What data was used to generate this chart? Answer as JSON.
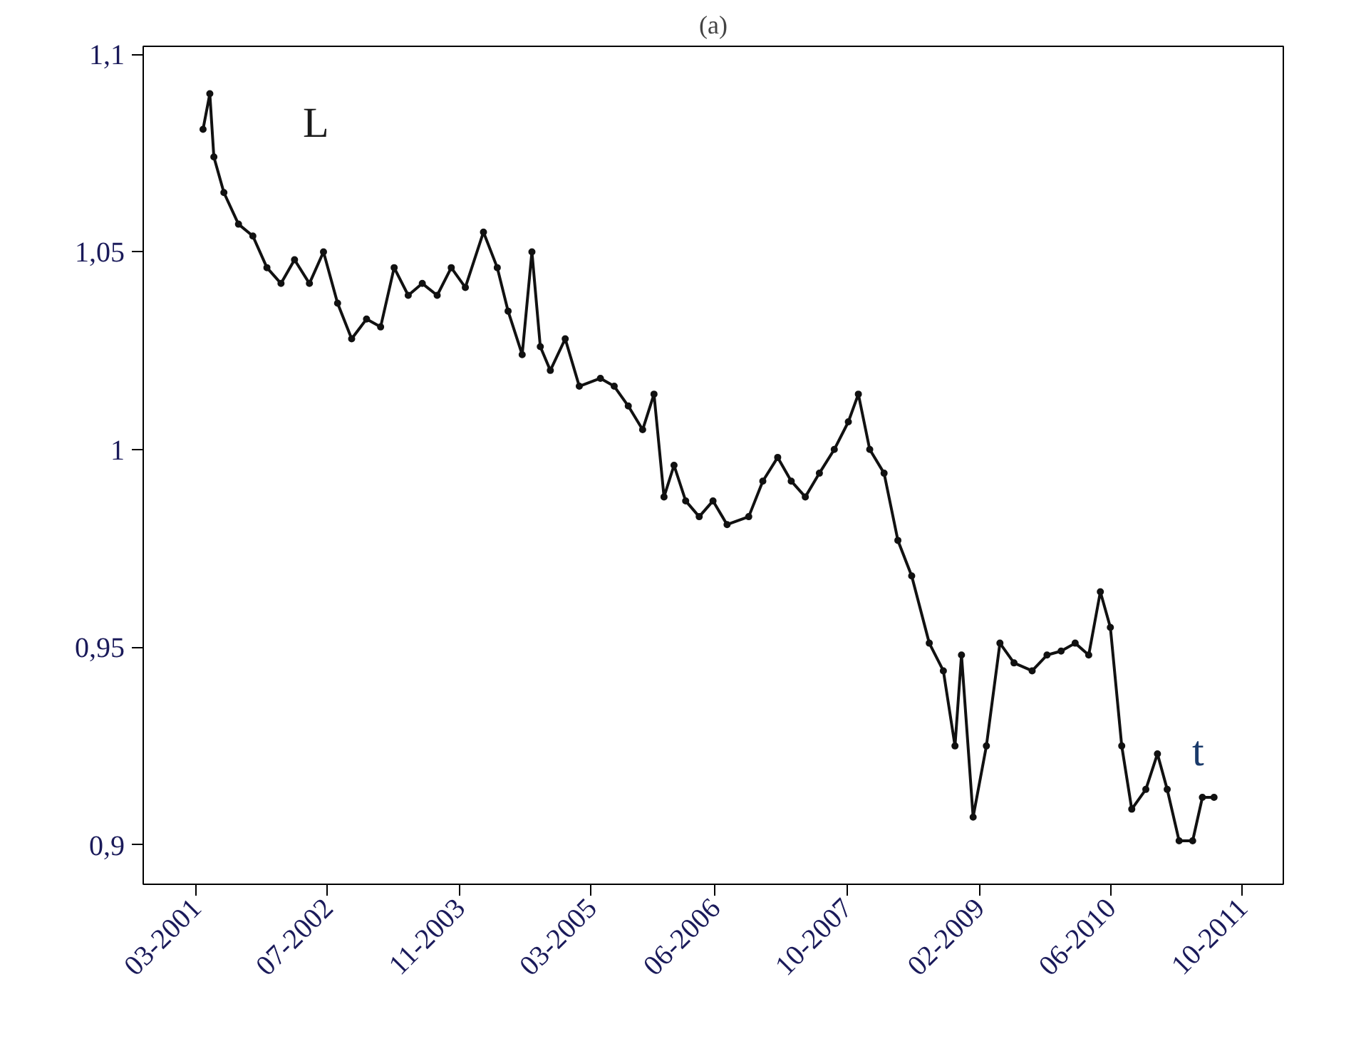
{
  "chart_data": {
    "type": "line",
    "title": "(a)",
    "marker": "circle",
    "line_style": "solid",
    "grid": false,
    "x": [
      "2001-03-28",
      "2001-04-22",
      "2001-05-07",
      "2001-06-13",
      "2001-08-06",
      "2001-09-28",
      "2001-11-19",
      "2002-01-10",
      "2002-03-01",
      "2002-04-25",
      "2002-06-16",
      "2002-08-07",
      "2002-09-28",
      "2002-11-22",
      "2003-01-13",
      "2003-03-04",
      "2003-04-25",
      "2003-06-16",
      "2003-08-10",
      "2003-10-01",
      "2003-11-22",
      "2004-01-28",
      "2004-03-19",
      "2004-04-28",
      "2004-06-19",
      "2004-07-25",
      "2004-08-25",
      "2004-10-01",
      "2004-11-25",
      "2005-01-16",
      "2005-04-04",
      "2005-05-25",
      "2005-07-16",
      "2005-09-07",
      "2005-10-19",
      "2005-11-25",
      "2006-01-01",
      "2006-02-13",
      "2006-04-04",
      "2006-05-25",
      "2006-07-16",
      "2006-10-04",
      "2006-11-25",
      "2007-01-19",
      "2007-03-10",
      "2007-05-01",
      "2007-06-22",
      "2007-08-16",
      "2007-10-07",
      "2007-11-13",
      "2007-12-25",
      "2008-02-16",
      "2008-04-07",
      "2008-05-28",
      "2008-08-01",
      "2008-09-22",
      "2008-11-04",
      "2008-11-28",
      "2009-01-10",
      "2009-02-28",
      "2009-04-19",
      "2009-06-10",
      "2009-08-16",
      "2009-10-10",
      "2009-12-01",
      "2010-01-22",
      "2010-03-13",
      "2010-04-25",
      "2010-06-01",
      "2010-07-13",
      "2010-08-19",
      "2010-10-10",
      "2010-11-22",
      "2010-12-28",
      "2011-02-10",
      "2011-04-01",
      "2011-05-07",
      "2011-06-19"
    ],
    "series": [
      {
        "color": "#111111",
        "values": [
          1.081,
          1.09,
          1.074,
          1.065,
          1.057,
          1.054,
          1.046,
          1.042,
          1.048,
          1.042,
          1.05,
          1.037,
          1.028,
          1.033,
          1.031,
          1.046,
          1.039,
          1.042,
          1.039,
          1.046,
          1.041,
          1.055,
          1.046,
          1.035,
          1.024,
          1.05,
          1.026,
          1.02,
          1.028,
          1.016,
          1.018,
          1.016,
          1.011,
          1.005,
          1.014,
          0.988,
          0.996,
          0.987,
          0.983,
          0.987,
          0.981,
          0.983,
          0.992,
          0.998,
          0.992,
          0.988,
          0.994,
          1.0,
          1.007,
          1.014,
          1.0,
          0.994,
          0.977,
          0.968,
          0.951,
          0.944,
          0.925,
          0.948,
          0.907,
          0.925,
          0.951,
          0.946,
          0.944,
          0.948,
          0.949,
          0.951,
          0.948,
          0.964,
          0.955,
          0.925,
          0.909,
          0.914,
          0.923,
          0.914,
          0.901,
          0.901,
          0.912,
          0.912
        ]
      }
    ],
    "xlim": [
      "2000-08-19",
      "2012-03-01"
    ],
    "xticks": [
      {
        "value": "2001-03",
        "label": "03-2001"
      },
      {
        "value": "2002-07",
        "label": "07-2002"
      },
      {
        "value": "2003-11",
        "label": "11-2003"
      },
      {
        "value": "2005-03",
        "label": "03-2005"
      },
      {
        "value": "2006-06",
        "label": "06-2006"
      },
      {
        "value": "2007-10",
        "label": "10-2007"
      },
      {
        "value": "2009-02",
        "label": "02-2009"
      },
      {
        "value": "2010-06",
        "label": "06-2010"
      },
      {
        "value": "2011-10",
        "label": "10-2011"
      }
    ],
    "ylim": [
      0.89,
      1.102
    ],
    "yticks": [
      {
        "value": 0.9,
        "label": "0,9"
      },
      {
        "value": 0.95,
        "label": "0,95"
      },
      1,
      {
        "value": 1.05,
        "label": "1,05"
      },
      {
        "value": 1.1,
        "label": "1,1"
      }
    ],
    "annotations": [
      "L",
      "t"
    ]
  }
}
